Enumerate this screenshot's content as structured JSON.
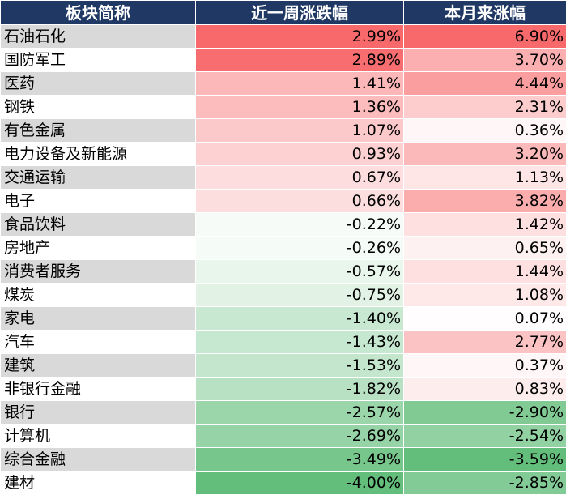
{
  "chart_data": {
    "type": "table",
    "columns": [
      "板块简称",
      "近一周涨跌幅",
      "本月来涨幅"
    ],
    "rows": [
      {
        "name": "石油石化",
        "week": "2.99%",
        "month": "6.90%"
      },
      {
        "name": "国防军工",
        "week": "2.89%",
        "month": "3.70%"
      },
      {
        "name": "医药",
        "week": "1.41%",
        "month": "4.44%"
      },
      {
        "name": "钢铁",
        "week": "1.36%",
        "month": "2.31%"
      },
      {
        "name": "有色金属",
        "week": "1.07%",
        "month": "0.36%"
      },
      {
        "name": "电力设备及新能源",
        "week": "0.93%",
        "month": "3.20%"
      },
      {
        "name": "交通运输",
        "week": "0.67%",
        "month": "1.13%"
      },
      {
        "name": "电子",
        "week": "0.66%",
        "month": "3.82%"
      },
      {
        "name": "食品饮料",
        "week": "-0.22%",
        "month": "1.42%"
      },
      {
        "name": "房地产",
        "week": "-0.26%",
        "month": "0.65%"
      },
      {
        "name": "消费者服务",
        "week": "-0.57%",
        "month": "1.44%"
      },
      {
        "name": "煤炭",
        "week": "-0.75%",
        "month": "1.08%"
      },
      {
        "name": "家电",
        "week": "-1.40%",
        "month": "0.07%"
      },
      {
        "name": "汽车",
        "week": "-1.43%",
        "month": "2.77%"
      },
      {
        "name": "建筑",
        "week": "-1.53%",
        "month": "0.37%"
      },
      {
        "name": "非银行金融",
        "week": "-1.82%",
        "month": "0.83%"
      },
      {
        "name": "银行",
        "week": "-2.57%",
        "month": "-2.90%"
      },
      {
        "name": "计算机",
        "week": "-2.69%",
        "month": "-2.54%"
      },
      {
        "name": "综合金融",
        "week": "-3.49%",
        "month": "-3.59%"
      },
      {
        "name": "建材",
        "week": "-4.00%",
        "month": "-2.85%"
      }
    ],
    "heat_colors": {
      "high": "#f8696b",
      "mid": "#ffffff",
      "low": "#63be7b"
    },
    "name_column_colors": [
      "#d9d9d9",
      "#ffffff"
    ],
    "header_color": "#1f3864"
  }
}
